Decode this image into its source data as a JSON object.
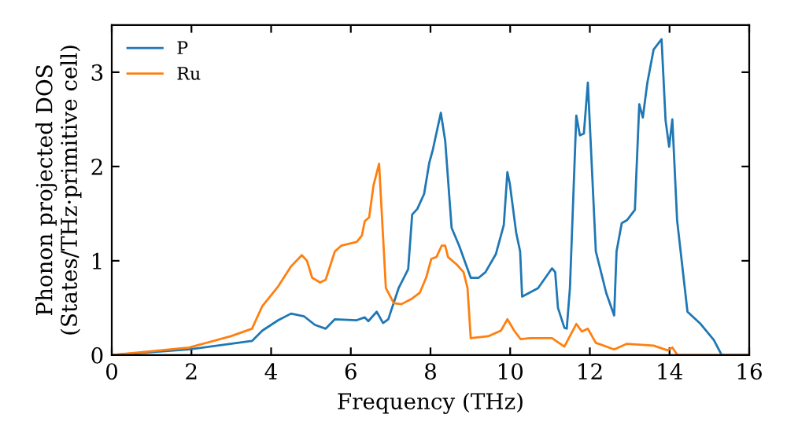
{
  "chart_data": {
    "type": "line",
    "xlabel": "Frequency (THz)",
    "ylabel": "Phonon projected DOS\n(States/THz·primitive cell)",
    "xlim": [
      0,
      16
    ],
    "ylim": [
      0,
      3.5
    ],
    "xticks": [
      0,
      2,
      4,
      6,
      8,
      10,
      12,
      14,
      16
    ],
    "yticks": [
      0,
      1,
      2,
      3
    ],
    "grid": false,
    "legend": "top left",
    "marker": "none",
    "line_style": "solid",
    "series": [
      {
        "name": "P",
        "color": "#1f77b4",
        "x": [
          0,
          1.94,
          3.52,
          3.78,
          4.18,
          4.5,
          4.83,
          5.1,
          5.37,
          5.6,
          6.15,
          6.35,
          6.44,
          6.65,
          6.81,
          6.94,
          7.2,
          7.44,
          7.54,
          7.67,
          7.84,
          7.97,
          8.06,
          8.26,
          8.37,
          8.53,
          8.72,
          9.01,
          9.21,
          9.38,
          9.64,
          9.84,
          9.93,
          9.99,
          10.15,
          10.25,
          10.3,
          10.7,
          11.05,
          11.13,
          11.2,
          11.36,
          11.42,
          11.5,
          11.66,
          11.75,
          11.85,
          11.95,
          12.15,
          12.41,
          12.61,
          12.67,
          12.8,
          12.93,
          13.13,
          13.24,
          13.33,
          13.44,
          13.6,
          13.8,
          13.9,
          13.99,
          14.07,
          14.19,
          14.45,
          14.78,
          15.11,
          15.31,
          16
        ],
        "values": [
          0,
          0.06,
          0.15,
          0.26,
          0.37,
          0.44,
          0.41,
          0.32,
          0.28,
          0.38,
          0.37,
          0.4,
          0.36,
          0.46,
          0.34,
          0.38,
          0.71,
          0.91,
          1.49,
          1.55,
          1.71,
          2.04,
          2.18,
          2.57,
          2.27,
          1.35,
          1.16,
          0.82,
          0.82,
          0.88,
          1.07,
          1.38,
          1.94,
          1.82,
          1.3,
          1.1,
          0.62,
          0.71,
          0.92,
          0.88,
          0.5,
          0.29,
          0.28,
          0.71,
          2.54,
          2.33,
          2.35,
          2.89,
          1.1,
          0.66,
          0.42,
          1.1,
          1.4,
          1.43,
          1.54,
          2.66,
          2.52,
          2.88,
          3.24,
          3.35,
          2.49,
          2.21,
          2.5,
          1.43,
          0.46,
          0.33,
          0.16,
          0,
          0
        ]
      },
      {
        "name": "Ru",
        "color": "#ff7f0e",
        "x": [
          0,
          1.94,
          2.99,
          3.52,
          3.78,
          4.18,
          4.5,
          4.77,
          4.9,
          5.03,
          5.23,
          5.37,
          5.6,
          5.76,
          6.15,
          6.28,
          6.35,
          6.46,
          6.57,
          6.71,
          6.88,
          7.08,
          7.27,
          7.54,
          7.73,
          7.89,
          8.02,
          8.15,
          8.28,
          8.37,
          8.44,
          8.66,
          8.83,
          8.93,
          9.01,
          9.45,
          9.77,
          9.93,
          10.1,
          10.26,
          10.5,
          11.05,
          11.36,
          11.66,
          11.8,
          11.95,
          12.15,
          12.61,
          12.93,
          13.6,
          13.95,
          14.07,
          14.2,
          16
        ],
        "values": [
          0,
          0.08,
          0.2,
          0.28,
          0.52,
          0.73,
          0.94,
          1.06,
          1.0,
          0.82,
          0.77,
          0.8,
          1.1,
          1.16,
          1.2,
          1.27,
          1.42,
          1.46,
          1.8,
          2.03,
          0.71,
          0.55,
          0.54,
          0.6,
          0.66,
          0.82,
          1.02,
          1.04,
          1.16,
          1.16,
          1.04,
          0.96,
          0.88,
          0.71,
          0.18,
          0.2,
          0.26,
          0.38,
          0.26,
          0.17,
          0.18,
          0.18,
          0.09,
          0.33,
          0.25,
          0.28,
          0.13,
          0.06,
          0.12,
          0.1,
          0.05,
          0.08,
          0,
          0
        ]
      }
    ]
  }
}
